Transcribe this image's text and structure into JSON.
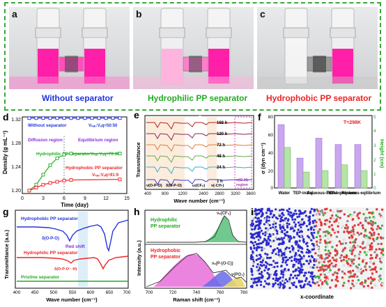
{
  "photos": [
    {
      "letter": "a",
      "caption": "Without separator",
      "caption_color": "#2233dd"
    },
    {
      "letter": "b",
      "caption": "Hydrophilic PP separator",
      "caption_color": "#22aa22"
    },
    {
      "letter": "c",
      "caption": "Hydrophobic PP separator",
      "caption_color": "#ee2222"
    }
  ],
  "panel_d": {
    "letter": "d",
    "ylabel": "Density (g mL⁻¹)",
    "xlabel": "Time (day)",
    "yticks": [
      "1.32",
      "1.28",
      "1.24",
      "1.20"
    ],
    "xticks": [
      "0",
      "3",
      "6",
      "9",
      "12",
      "15"
    ],
    "legend_without": "Without separator",
    "ratio_without": "Vₜₑₚ:Vₐq=50:50",
    "diffusion": "Diffusion region",
    "equilibrium": "Equilibrium region",
    "legend_hydrophilic": "Hydrophilic PP separator",
    "ratio_hydrophilic": "Vₜₑₚ:Vₐq=70:30",
    "legend_hydrophobic": "Hydrophobic PP separator",
    "ratio_hydrophobic": "Vₜₑₚ:Vₐq=91:9"
  },
  "panel_e": {
    "letter": "e",
    "ylabel": "Transmittance",
    "xlabel": "Wave number (cm⁻¹)",
    "xticks": [
      "400",
      "800",
      "1200",
      "2400",
      "2800",
      "3200",
      "3600"
    ],
    "times": [
      "168 h",
      "120 h",
      "72 h",
      "48 h",
      "24 h",
      "1 h"
    ],
    "ann1": "ν(O-P-O)",
    "ann2": "δ(O-P-O)",
    "ann3": "ω(CF₃)",
    "ann4": "ν(-CH-)",
    "ann5": "ν(O-H)",
    "ann6": "region"
  },
  "panel_f": {
    "letter": "f",
    "ylabel_left": "σ (dyn cm⁻¹)",
    "ylabel_right": "Height (cm)",
    "temperature": "T=298K",
    "yticks_left": [
      "80",
      "60",
      "40",
      "20",
      "0"
    ],
    "yticks_right": [
      "5",
      "4",
      "3",
      "2",
      "1",
      "0"
    ],
    "categories": [
      "Water",
      "TEP-initial",
      "Aqueous-initial",
      "TEP-eqilibrium",
      "Aqueous-eqilibrium"
    ]
  },
  "panel_g": {
    "letter": "g",
    "ylabel": "Transmittance (a.u.)",
    "xlabel": "Wave number (cm⁻¹)",
    "xticks": [
      "400",
      "450",
      "500",
      "550",
      "600",
      "650",
      "700"
    ],
    "label_hydrophobic": "Hydrophobic PP separator",
    "label_hydrophilic": "Hydrophilic PP separator",
    "label_pristine": "Pristine separator",
    "ann_delta1": "δ(O-P-O)",
    "ann_shift": "Red shift",
    "ann_delta2": "δ(O-P-O···H)"
  },
  "panel_h": {
    "letter": "h",
    "ylabel": "Intensity (a.u.)",
    "xlabel": "Raman shift (cm⁻¹)",
    "xticks": [
      "700",
      "720",
      "740",
      "760",
      "780"
    ],
    "label_hydrophilic_1": "Hydrophilic",
    "label_hydrophilic_2": "PP separator",
    "ann_cf3": "νₛ(CF₃)",
    "label_hydrophobic_1": "Hydrophobic",
    "label_hydrophobic_2": "PP separator",
    "ann_popc": "νₛ(P-(O-C))",
    "ann_po4": "ν(PO₄)"
  },
  "panel_i": {
    "letter": "i",
    "xlabel": "x-coordinate"
  },
  "chart_data": [
    {
      "type": "line",
      "ylabel": "Density (g mL⁻¹)",
      "xlabel": "Time (day)",
      "xlim": [
        0,
        15
      ],
      "ylim": [
        1.19,
        1.32
      ],
      "series": [
        {
          "name": "Without separator",
          "x": [
            1,
            2,
            3,
            4,
            5,
            6,
            7,
            8,
            9,
            10,
            11,
            12,
            13,
            14
          ],
          "values": [
            1.318,
            1.318,
            1.318,
            1.318,
            1.318,
            1.318,
            1.318,
            1.318,
            1.318,
            1.318,
            1.318,
            1.318,
            1.318,
            1.318
          ]
        },
        {
          "name": "Hydrophilic PP separator",
          "x": [
            1,
            2,
            3,
            4,
            5,
            6,
            7,
            14
          ],
          "values": [
            1.195,
            1.205,
            1.222,
            1.238,
            1.25,
            1.256,
            1.258,
            1.258
          ]
        },
        {
          "name": "Hydrophobic PP separator",
          "x": [
            1,
            2,
            3,
            4,
            5,
            6,
            7,
            14
          ],
          "values": [
            1.195,
            1.2,
            1.205,
            1.208,
            1.21,
            1.212,
            1.213,
            1.214
          ]
        }
      ]
    },
    {
      "type": "bar",
      "categories": [
        "Water",
        "TEP-initial",
        "Aqueous-initial",
        "TEP-eqilibrium",
        "Aqueous-eqilibrium"
      ],
      "series": [
        {
          "name": "σ",
          "values": [
            70,
            33,
            55,
            48,
            48
          ]
        },
        {
          "name": "Height",
          "values": [
            2.8,
            1.1,
            1.2,
            1.6,
            1.2
          ]
        }
      ],
      "ylim": [
        0,
        80
      ]
    }
  ]
}
